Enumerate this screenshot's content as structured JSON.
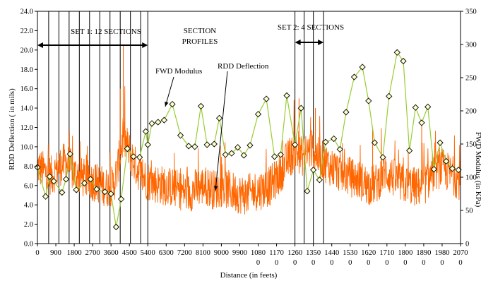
{
  "chart_data": {
    "type": "line",
    "xlabel": "Distance (in feets)",
    "ylabel_left": "RDD Deflection ( in mils)",
    "ylabel_right": "FWD Modulus (in KPa)",
    "x_range": [
      0,
      20700
    ],
    "y_left_range": [
      0,
      24
    ],
    "y_right_range": [
      0,
      350
    ],
    "y_left_ticks": [
      "0.0",
      "2.0",
      "4.0",
      "6.0",
      "8.0",
      "10.0",
      "12.0",
      "14.0",
      "16.0",
      "18.0",
      "20.0",
      "22.0",
      "24.0"
    ],
    "y_right_ticks": [
      "0",
      "50",
      "100",
      "150",
      "200",
      "250",
      "300",
      "350"
    ],
    "x_ticks": [
      {
        "value": 0,
        "line1": "0",
        "line2": ""
      },
      {
        "value": 900,
        "line1": "900",
        "line2": ""
      },
      {
        "value": 1800,
        "line1": "1800",
        "line2": ""
      },
      {
        "value": 2700,
        "line1": "2700",
        "line2": ""
      },
      {
        "value": 3600,
        "line1": "3600",
        "line2": ""
      },
      {
        "value": 4500,
        "line1": "4500",
        "line2": ""
      },
      {
        "value": 5400,
        "line1": "5400",
        "line2": ""
      },
      {
        "value": 6300,
        "line1": "6300",
        "line2": ""
      },
      {
        "value": 7200,
        "line1": "7200",
        "line2": ""
      },
      {
        "value": 8100,
        "line1": "8100",
        "line2": ""
      },
      {
        "value": 9000,
        "line1": "9000",
        "line2": ""
      },
      {
        "value": 9900,
        "line1": "9900",
        "line2": ""
      },
      {
        "value": 10800,
        "line1": "1080",
        "line2": "0"
      },
      {
        "value": 11700,
        "line1": "1170",
        "line2": "0"
      },
      {
        "value": 12600,
        "line1": "1260",
        "line2": "0"
      },
      {
        "value": 13500,
        "line1": "1350",
        "line2": "0"
      },
      {
        "value": 14400,
        "line1": "1440",
        "line2": "0"
      },
      {
        "value": 15300,
        "line1": "1530",
        "line2": "0"
      },
      {
        "value": 16200,
        "line1": "1620",
        "line2": "0"
      },
      {
        "value": 17100,
        "line1": "1710",
        "line2": "0"
      },
      {
        "value": 18000,
        "line1": "1800",
        "line2": "0"
      },
      {
        "value": 18900,
        "line1": "1890",
        "line2": "0"
      },
      {
        "value": 19800,
        "line1": "1980",
        "line2": "0"
      },
      {
        "value": 20700,
        "line1": "2070",
        "line2": "0"
      }
    ],
    "annotations": {
      "set1_label": "SET 1: 12 SECTIONS",
      "set2_label": "SET 2: 4 SECTIONS",
      "section_profiles_line1": "SECTION",
      "section_profiles_line2": "PROFILES",
      "fwd_label": "FWD Modulus",
      "rdd_label": "RDD Deflection"
    },
    "set1_range": [
      0,
      5400
    ],
    "set2_range": [
      12600,
      14000
    ],
    "section_boundaries": [
      0,
      550,
      1050,
      1550,
      2050,
      2550,
      3050,
      3550,
      4050,
      4550,
      5050,
      5400,
      12600,
      13050,
      13500,
      14000
    ],
    "series": [
      {
        "name": "FWD Modulus",
        "axis": "right",
        "color": "#99cc33",
        "marker": "diamond",
        "x": [
          0,
          400,
          600,
          800,
          1200,
          1400,
          1600,
          1900,
          2300,
          2600,
          2900,
          3300,
          3600,
          3850,
          4100,
          4400,
          4700,
          5000,
          5300,
          5400,
          5600,
          5900,
          6200,
          6600,
          7000,
          7400,
          7700,
          8000,
          8300,
          8650,
          8900,
          9200,
          9500,
          9800,
          10100,
          10400,
          10800,
          11200,
          11600,
          11900,
          12200,
          12600,
          12900,
          13200,
          13500,
          13800,
          14100,
          14500,
          14800,
          15100,
          15500,
          15900,
          16200,
          16500,
          16900,
          17200,
          17600,
          17900,
          18200,
          18500,
          18800,
          19100,
          19400,
          19700,
          20000,
          20300,
          20600
        ],
        "y": [
          115,
          71,
          101,
          94,
          77,
          97,
          135,
          81,
          91,
          97,
          82,
          78,
          75,
          25,
          67,
          143,
          131,
          130,
          169,
          149,
          181,
          183,
          186,
          210,
          163,
          147,
          146,
          207,
          149,
          150,
          189,
          134,
          136,
          145,
          133,
          148,
          195,
          218,
          131,
          134,
          223,
          149,
          204,
          79,
          111,
          96,
          153,
          158,
          142,
          198,
          251,
          266,
          215,
          152,
          130,
          222,
          288,
          275,
          140,
          205,
          182,
          206,
          112,
          152,
          124,
          113,
          111
        ]
      },
      {
        "name": "RDD Deflection",
        "axis": "left",
        "color": "#ff6600",
        "x": [
          0,
          300,
          700,
          1000,
          1400,
          1800,
          2200,
          2600,
          3000,
          3400,
          3700,
          3900,
          4200,
          4500,
          4800,
          5100,
          5400,
          5800,
          6200,
          6600,
          7000,
          7400,
          7800,
          8200,
          8600,
          9000,
          9400,
          9800,
          10200,
          10600,
          11000,
          11400,
          11800,
          12200,
          12600,
          13000,
          13400,
          13800,
          14200,
          14600,
          15000,
          15400,
          15800,
          16200,
          16600,
          17000,
          17400,
          17800,
          18200,
          18600,
          19000,
          19400,
          19800,
          20200,
          20700
        ],
        "y": [
          8.0,
          7.5,
          7.0,
          7.8,
          8.5,
          7.2,
          6.8,
          6.5,
          6.2,
          5.8,
          6.0,
          7.5,
          11.0,
          9.5,
          8.0,
          7.0,
          6.5,
          6.2,
          6.0,
          5.8,
          5.5,
          5.2,
          5.8,
          6.0,
          5.6,
          5.8,
          5.5,
          5.2,
          5.0,
          5.4,
          5.6,
          6.0,
          7.0,
          8.5,
          9.5,
          9.0,
          9.8,
          8.8,
          8.2,
          7.6,
          7.2,
          6.8,
          6.5,
          6.0,
          6.2,
          7.5,
          6.8,
          6.2,
          6.0,
          5.8,
          6.2,
          7.5,
          7.8,
          7.2,
          6.5
        ],
        "spikes": [
          {
            "x": 4200,
            "y": 20.5
          },
          {
            "x": 4050,
            "y": 16.0
          },
          {
            "x": 12800,
            "y": 15.0
          },
          {
            "x": 13600,
            "y": 14.0
          },
          {
            "x": 18800,
            "y": 12.5
          },
          {
            "x": 16400,
            "y": 12.0
          }
        ]
      }
    ]
  }
}
